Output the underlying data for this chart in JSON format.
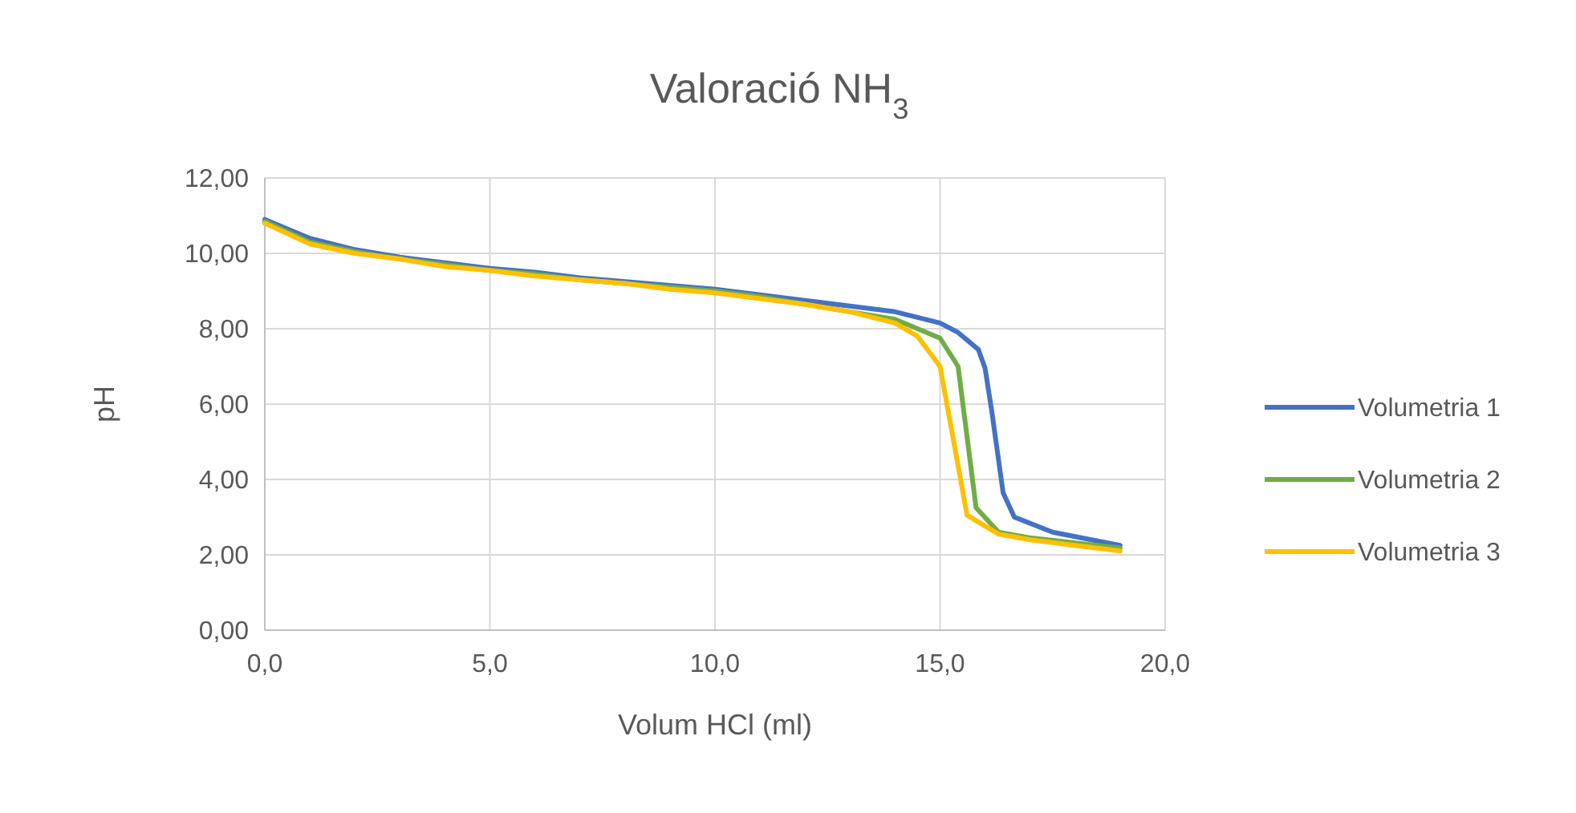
{
  "chart_data": {
    "type": "line",
    "title": "Valoració NH$_{3}$",
    "xlabel": "Volum HCl (ml)",
    "ylabel": "pH",
    "xlim": [
      0,
      20
    ],
    "xticks": [
      {
        "value": 0,
        "label": "0,0"
      },
      {
        "value": 5,
        "label": "5,0"
      },
      {
        "value": 10,
        "label": "10,0"
      },
      {
        "value": 15,
        "label": "15,0"
      },
      {
        "value": 20,
        "label": "20,0"
      }
    ],
    "ylim": [
      0,
      12
    ],
    "yticks": [
      {
        "value": 0,
        "label": "0,00"
      },
      {
        "value": 2,
        "label": "2,00"
      },
      {
        "value": 4,
        "label": "4,00"
      },
      {
        "value": 6,
        "label": "6,00"
      },
      {
        "value": 8,
        "label": "8,00"
      },
      {
        "value": 10,
        "label": "10,00"
      },
      {
        "value": 12,
        "label": "12,00"
      }
    ],
    "grid": true,
    "legend": "right",
    "marker": "none",
    "line_style": "solid",
    "series": [
      {
        "name": "Volumetria 1",
        "color": "#4472c4",
        "x": [
          0,
          1,
          2,
          3,
          4,
          5,
          6,
          7,
          8,
          9,
          10,
          11,
          12,
          13,
          14,
          15,
          15.4,
          15.85,
          16,
          16.15,
          16.4,
          16.65,
          17.5,
          19
        ],
        "values": [
          10.9,
          10.4,
          10.1,
          9.9,
          9.75,
          9.6,
          9.5,
          9.35,
          9.25,
          9.15,
          9.05,
          8.9,
          8.75,
          8.6,
          8.45,
          8.15,
          7.9,
          7.45,
          6.95,
          5.8,
          3.65,
          3.0,
          2.6,
          2.25
        ]
      },
      {
        "name": "Volumetria 2",
        "color": "#70ad47",
        "x": [
          0,
          1,
          2,
          3,
          4,
          5,
          6,
          7,
          8,
          9,
          10,
          11,
          12,
          13,
          14,
          14.5,
          15,
          15.4,
          15.8,
          16.3,
          17,
          19
        ],
        "values": [
          10.85,
          10.3,
          10.05,
          9.85,
          9.7,
          9.55,
          9.45,
          9.3,
          9.2,
          9.1,
          9.0,
          8.85,
          8.65,
          8.45,
          8.25,
          8.0,
          7.75,
          7.0,
          3.25,
          2.6,
          2.45,
          2.18
        ]
      },
      {
        "name": "Volumetria 3",
        "color": "#ffc000",
        "x": [
          0,
          1,
          2,
          3,
          4,
          5,
          6,
          7,
          8,
          9,
          10,
          11,
          12,
          13,
          14,
          14.5,
          15,
          15.6,
          16.3,
          17,
          19
        ],
        "values": [
          10.8,
          10.25,
          10.0,
          9.85,
          9.65,
          9.55,
          9.4,
          9.3,
          9.2,
          9.05,
          8.95,
          8.8,
          8.65,
          8.45,
          8.15,
          7.8,
          7.0,
          3.05,
          2.55,
          2.4,
          2.1
        ]
      }
    ]
  }
}
